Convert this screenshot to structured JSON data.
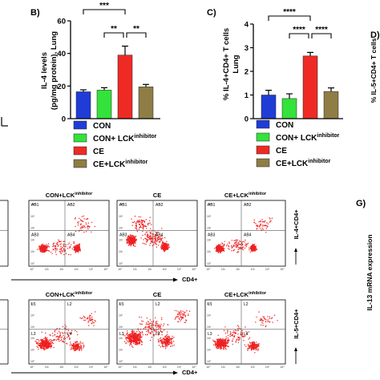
{
  "colors": {
    "con": "#1f3dd6",
    "con_lck": "#33e23a",
    "ce": "#ee2a25",
    "ce_lck": "#8e7d45",
    "dots": "#ee2020"
  },
  "legend": {
    "con": "CON",
    "con_lck_base": "CON+ LCK",
    "ce": "CE",
    "ce_lck_base": "CE+LCK",
    "sup": "inhibitor"
  },
  "chart_data": [
    {
      "type": "bar",
      "panel": "B)",
      "ylabel_line1": "IL-4 levels",
      "ylabel_line2": "(pg/mg protein), Lung",
      "categories": [
        "CON",
        "CON+ LCKinhibitor",
        "CE",
        "CE+LCKinhibitor"
      ],
      "values": [
        16.5,
        17.5,
        39,
        19.5
      ],
      "errors": [
        1.2,
        1.5,
        5.5,
        1.5
      ],
      "ylim": [
        0,
        60
      ],
      "yticks": [
        "0",
        "20",
        "40",
        "60"
      ],
      "significance": [
        "***",
        "**",
        "**"
      ]
    },
    {
      "type": "bar",
      "panel": "C)",
      "ylabel_line1": "% IL-4+CD4+ T cells",
      "ylabel_line2": "Lung",
      "categories": [
        "CON",
        "CON+ LCKinhibitor",
        "CE",
        "CE+LCKinhibitor"
      ],
      "values": [
        1.0,
        0.85,
        2.65,
        1.15
      ],
      "errors": [
        0.2,
        0.2,
        0.15,
        0.15
      ],
      "ylim": [
        0,
        4
      ],
      "yticks": [
        "0",
        "1",
        "2",
        "3",
        "4"
      ],
      "significance": [
        "****",
        "****",
        "****"
      ]
    }
  ],
  "edge_labels": {
    "panel_d": "D)",
    "panel_g": "G)",
    "d_axis": "% IL-5+CD4+ T cells",
    "g_axis": "IL-13 mRNA expression"
  },
  "flow": {
    "row1": {
      "titles": [
        "CON+LCKinhibitor",
        "CE",
        "CE+LCKinhibitor"
      ],
      "title_bases": [
        "CON+LCK",
        "CE",
        "CE+LCK"
      ],
      "title_sups": [
        "inhibitor",
        "",
        "inhibitor"
      ],
      "quadrants": [
        "AB1",
        "AB2",
        "AB3",
        "AB4"
      ],
      "side_label": "IL-4+CD4+",
      "x_label": "CD4+"
    },
    "row2": {
      "titles": [
        "CON+LCKinhibitor",
        "CE",
        "CE+LCKinhibitor"
      ],
      "title_bases": [
        "CON+LCK",
        "CE",
        "CE+LCK"
      ],
      "title_sups": [
        "inhibitor",
        "",
        "inhibitor"
      ],
      "quadrants": [
        "L1",
        "L2",
        "L3",
        "L4"
      ],
      "side_label": "IL-5+CD4+",
      "x_label": "CD4+"
    },
    "axis_ticks": [
      "10°",
      "10¹",
      "10²",
      "10³",
      "10⁴",
      "10⁵"
    ]
  }
}
